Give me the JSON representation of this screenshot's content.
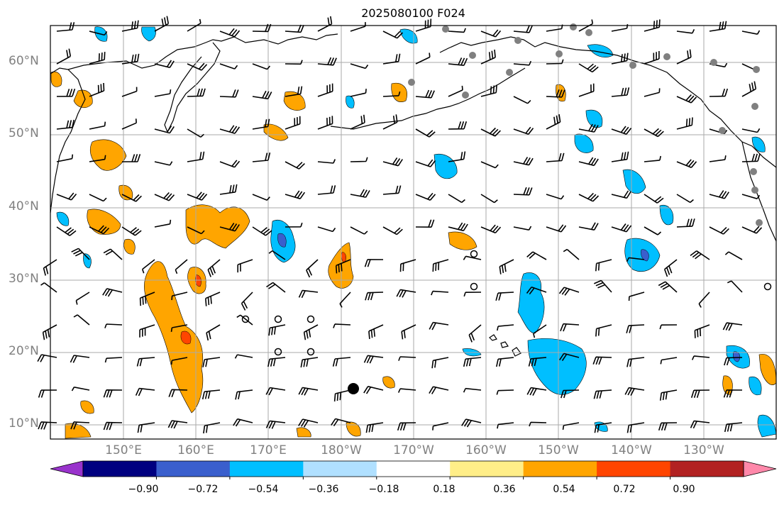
{
  "title": "2025080100 F024",
  "lat_labels": [
    "60°N",
    "50°N",
    "40°N",
    "30°N",
    "20°N",
    "10°N"
  ],
  "lon_labels": [
    "150°E",
    "160°E",
    "170°E",
    "180°W",
    "170°W",
    "160°W",
    "150°W",
    "140°W",
    "130°W"
  ],
  "colorbar": {
    "ticks": [
      "−0.90",
      "−0.72",
      "−0.54",
      "−0.36",
      "−0.18",
      "0.18",
      "0.36",
      "0.54",
      "0.72",
      "0.90"
    ],
    "colors": [
      "#9933cc",
      "#000080",
      "#3a5fcd",
      "#00bfff",
      "#b0e0ff",
      "#ffffff",
      "#ffee88",
      "#ffa500",
      "#ff4500",
      "#b22222",
      "#ff88aa"
    ]
  },
  "map": {
    "lon_range": [
      140,
      240
    ],
    "lat_range": [
      8,
      65
    ],
    "grid": true
  }
}
